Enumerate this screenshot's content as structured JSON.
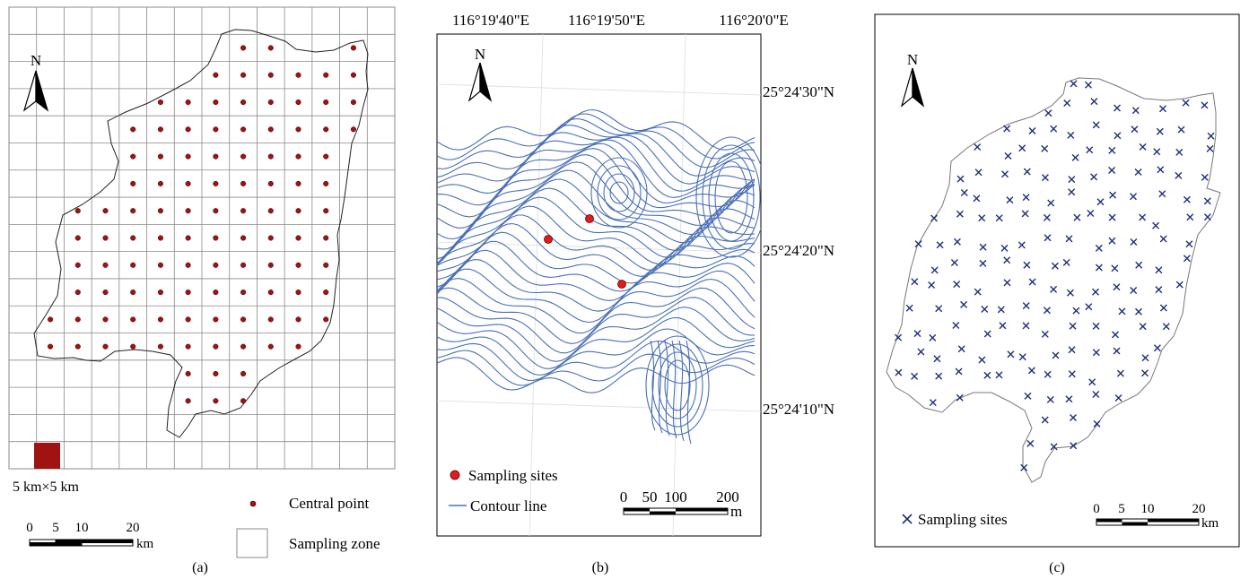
{
  "panel_a": {
    "caption": "(a)",
    "north_label": "N",
    "cell_size_label": "5 km×5 km",
    "scale": {
      "ticks": [
        "0",
        "5",
        "10",
        "20"
      ],
      "unit": "km"
    },
    "legend": {
      "central_point": "Central point",
      "sampling_zone": "Sampling zone"
    },
    "grid": {
      "cols": 14,
      "rows": 17
    },
    "central_point_color": "#a11212"
  },
  "panel_b": {
    "caption": "(b)",
    "north_label": "N",
    "lon_labels": [
      "116°19'40\"E",
      "116°19'50\"E",
      "116°20'0\"E"
    ],
    "lat_labels": [
      "25°24'30\"N",
      "25°24'20\"N",
      "25°24'10\"N"
    ],
    "legend": {
      "sampling_sites": "Sampling sites",
      "contour_line": "Contour line"
    },
    "scale": {
      "ticks": [
        "0",
        "50",
        "100",
        "200"
      ],
      "unit": "m"
    },
    "contour_color": "#4a6fb8",
    "site_color": "#e11a1a"
  },
  "panel_c": {
    "caption": "(c)",
    "north_label": "N",
    "legend": {
      "sampling_sites": "Sampling sites"
    },
    "scale": {
      "ticks": [
        "0",
        "5",
        "10",
        "20"
      ],
      "unit": "km"
    },
    "site_color": "#1f2f7a"
  }
}
